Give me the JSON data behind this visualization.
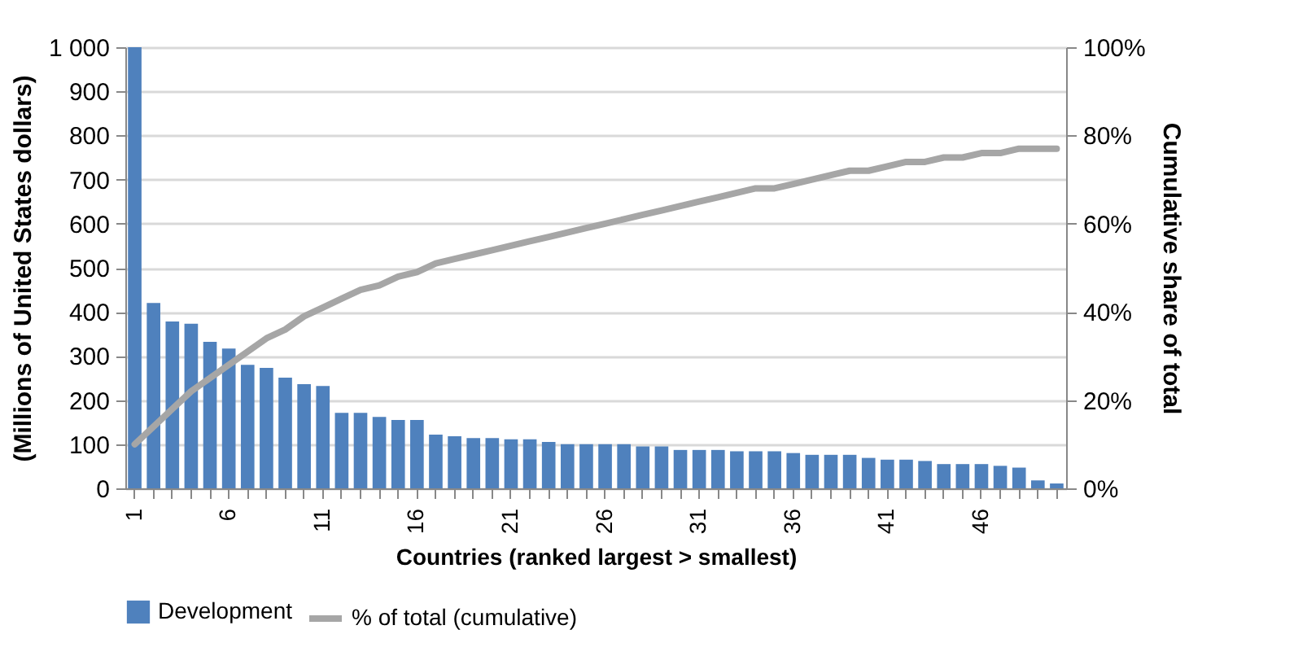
{
  "chart_data": {
    "type": "bar",
    "xlabel": "Countries (ranked largest > smallest)",
    "ylabel": "(Millions of United States dollars)",
    "y2label": "Cumulative share of total",
    "categories": [
      "1",
      null,
      null,
      null,
      null,
      "6",
      null,
      null,
      null,
      null,
      "11",
      null,
      null,
      null,
      null,
      "16",
      null,
      null,
      null,
      null,
      "21",
      null,
      null,
      null,
      null,
      "26",
      null,
      null,
      null,
      null,
      "31",
      null,
      null,
      null,
      null,
      "36",
      null,
      null,
      null,
      null,
      "41",
      null,
      null,
      null,
      null,
      "46",
      null,
      null,
      null,
      null
    ],
    "series": [
      {
        "name": "Development",
        "color": "#4f81bd",
        "values": [
          1000,
          420,
          378,
          373,
          332,
          317,
          280,
          273,
          251,
          236,
          232,
          171,
          171,
          162,
          155,
          155,
          122,
          118,
          114,
          114,
          111,
          111,
          105,
          100,
          100,
          100,
          100,
          95,
          95,
          87,
          87,
          87,
          84,
          84,
          84,
          80,
          76,
          76,
          76,
          69,
          65,
          65,
          62,
          55,
          55,
          55,
          51,
          47,
          18,
          11
        ]
      },
      {
        "name": "% of total (cumulative)",
        "type": "line",
        "axis": "y2",
        "color": "#a6a6a6",
        "values": [
          10,
          14,
          18,
          22,
          25,
          28,
          31,
          34,
          36,
          39,
          41,
          43,
          45,
          46,
          48,
          49,
          51,
          52,
          53,
          54,
          55,
          56,
          57,
          58,
          59,
          60,
          61,
          62,
          63,
          64,
          65,
          66,
          67,
          68,
          68,
          69,
          70,
          71,
          72,
          72,
          73,
          74,
          74,
          75,
          75,
          76,
          76,
          77,
          77,
          77
        ]
      }
    ],
    "ylim": [
      0,
      1000
    ],
    "yticks": [
      0,
      100,
      200,
      300,
      400,
      500,
      600,
      700,
      800,
      900,
      {
        "value": 1000,
        "label": "1 000"
      }
    ],
    "y2lim": [
      0,
      100
    ],
    "y2ticks": [
      {
        "value": 0,
        "label": "0%"
      },
      {
        "value": 20,
        "label": "20%"
      },
      {
        "value": 40,
        "label": "40%"
      },
      {
        "value": 60,
        "label": "60%"
      },
      {
        "value": 80,
        "label": "80%"
      },
      {
        "value": 100,
        "label": "100%"
      }
    ],
    "grid": "y",
    "legend": "bottom",
    "line_style": "solid",
    "marker": "none"
  }
}
